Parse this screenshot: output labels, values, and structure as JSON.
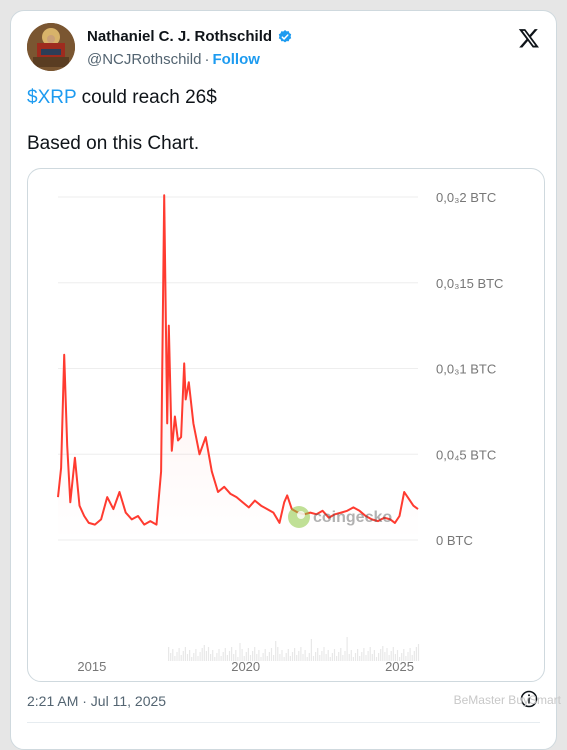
{
  "tweet": {
    "author_name": "Nathaniel C. J. Rothschild",
    "handle": "@NCJRothschild",
    "separator": "·",
    "follow_label": "Follow",
    "cashtag": "$XRP",
    "text_rest": " could reach 26$",
    "text_line2": "Based on this Chart.",
    "timestamp": "2:21 AM · Jul 11, 2025"
  },
  "watermark": "BeMaster BuySmart",
  "colors": {
    "accent": "#1d9bf0",
    "line": "#ff3b30",
    "text": "#0f1419",
    "muted": "#536471"
  },
  "icons": [
    "verified-badge-icon",
    "x-logo-icon",
    "info-icon"
  ],
  "chart_data": {
    "type": "line",
    "source_logo": "coingecko",
    "ylabels": [
      "0,0₃2 BTC",
      "0,0₃15 BTC",
      "0,0₃1 BTC",
      "0,0₄5 BTC",
      "0 BTC"
    ],
    "yticks": [
      2e-05,
      1.5e-05,
      1e-05,
      5e-06,
      0
    ],
    "ylim": [
      0,
      2e-05
    ],
    "xlabels": [
      "2015",
      "2020",
      "2025"
    ],
    "xticks": [
      2015,
      2020,
      2025
    ],
    "xlim": [
      2013.9,
      2025.6
    ],
    "series": [
      {
        "x": [
          2013.9,
          2014.0,
          2014.1,
          2014.2,
          2014.3,
          2014.45,
          2014.6,
          2014.75,
          2014.9,
          2015.1,
          2015.3,
          2015.5,
          2015.7,
          2015.9,
          2016.1,
          2016.3,
          2016.5,
          2016.7,
          2016.9,
          2017.1,
          2017.25,
          2017.35,
          2017.45,
          2017.5,
          2017.6,
          2017.7,
          2017.8,
          2017.9,
          2018.0,
          2018.05,
          2018.15,
          2018.3,
          2018.5,
          2018.7,
          2018.9,
          2019.1,
          2019.3,
          2019.5,
          2019.7,
          2019.9,
          2020.1,
          2020.3,
          2020.5,
          2020.7,
          2020.9,
          2021.1,
          2021.25,
          2021.35,
          2021.5,
          2021.7,
          2021.9,
          2022.1,
          2022.3,
          2022.5,
          2022.7,
          2022.9,
          2023.1,
          2023.3,
          2023.5,
          2023.7,
          2023.9,
          2024.1,
          2024.3,
          2024.5,
          2024.7,
          2024.85,
          2025.0,
          2025.15,
          2025.3,
          2025.45,
          2025.6
        ],
        "y": [
          2.5e-06,
          4.2e-06,
          1.08e-05,
          5.5e-06,
          2.2e-06,
          4.8e-06,
          2e-06,
          1.4e-06,
          1e-06,
          9e-07,
          1.2e-06,
          2.5e-06,
          1.8e-06,
          2.8e-06,
          1.6e-06,
          1.2e-06,
          1.4e-06,
          9e-07,
          1.1e-06,
          9e-07,
          4e-06,
          2.01e-05,
          6.8e-06,
          1.25e-05,
          5.2e-06,
          7.2e-06,
          5.8e-06,
          6e-06,
          1.03e-05,
          8.2e-06,
          9.2e-06,
          6.8e-06,
          5e-06,
          6e-06,
          4e-06,
          2.8e-06,
          3.1e-06,
          2.7e-06,
          2.5e-06,
          2.2e-06,
          1.9e-06,
          2.3e-06,
          2e-06,
          1.8e-06,
          1.6e-06,
          1e-06,
          2.2e-06,
          2.6e-06,
          1.8e-06,
          1.6e-06,
          1.5e-06,
          1.6e-06,
          1.5e-06,
          1.7e-06,
          1.3e-06,
          1.5e-06,
          1.6e-06,
          1.7e-06,
          1.9e-06,
          1.7e-06,
          1.4e-06,
          1.2e-06,
          1.1e-06,
          1.3e-06,
          1.2e-06,
          1e-06,
          1.4e-06,
          2.8e-06,
          2.4e-06,
          2e-06,
          1.8e-06
        ]
      }
    ],
    "volume_present": true
  }
}
